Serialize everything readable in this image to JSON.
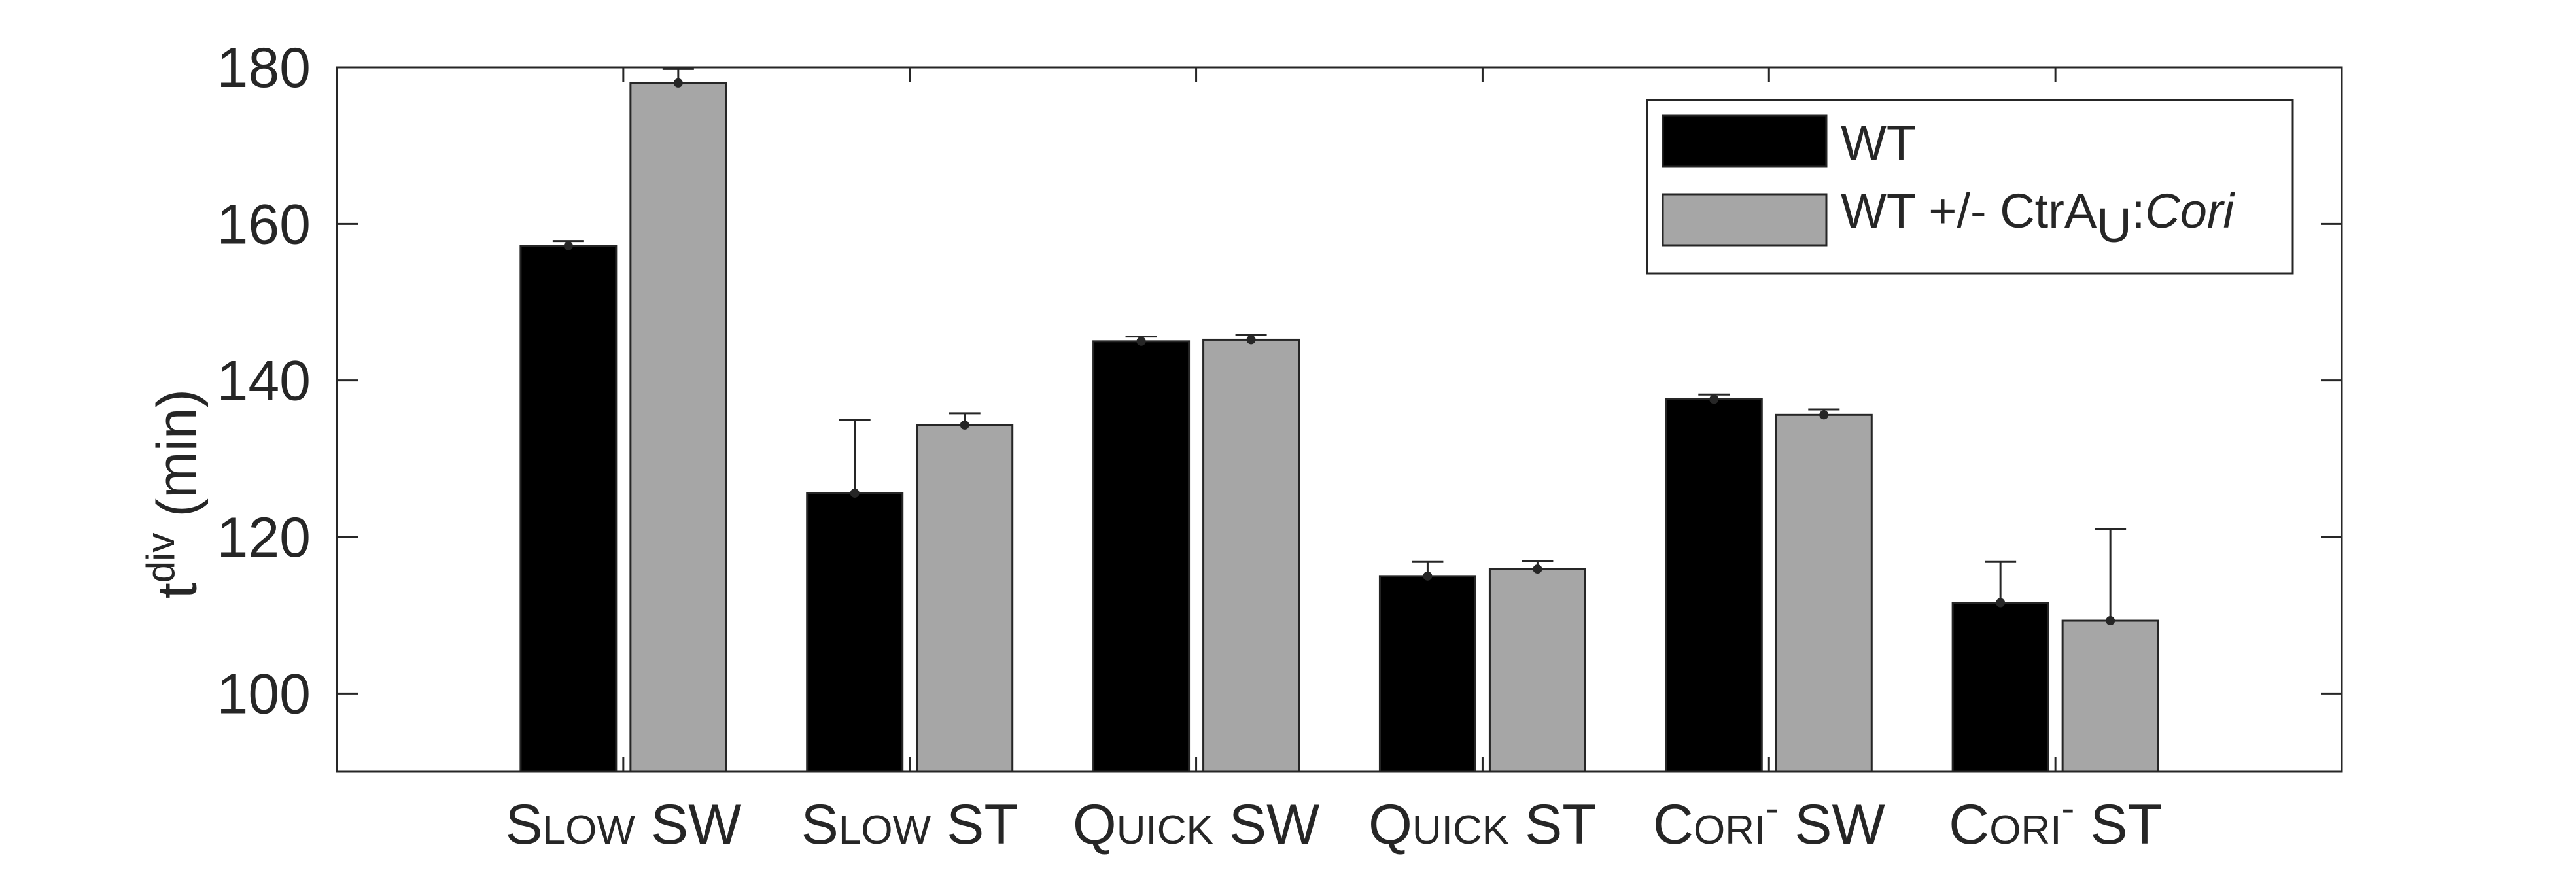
{
  "chart_data": {
    "type": "bar",
    "categories": [
      "SLOW SW",
      "SLOW ST",
      "QUICK SW",
      "QUICK ST",
      "CORI- SW",
      "CORI- ST"
    ],
    "series": [
      {
        "name": "WT",
        "color": "#000000",
        "values": [
          157.2,
          125.6,
          145.0,
          115.0,
          137.6,
          111.6
        ],
        "error_upper": [
          0.6,
          9.4,
          0.6,
          1.8,
          0.6,
          5.2
        ]
      },
      {
        "name": "WT +/- CtrA_U:Cori",
        "color": "#a6a6a6",
        "values": [
          178.0,
          134.3,
          145.2,
          115.9,
          135.6,
          109.3
        ],
        "error_upper": [
          1.8,
          1.5,
          0.6,
          1.0,
          0.7,
          11.7
        ]
      }
    ],
    "ylabel": "t^div (min)",
    "ylim": [
      90,
      180
    ],
    "yticks": [
      100,
      120,
      140,
      160,
      180
    ],
    "grid": false,
    "legend_position": "top-right",
    "labels": {
      "ylabel_base": "t",
      "ylabel_sup": "div",
      "ylabel_rest": " (min)",
      "legend_wt": "WT",
      "legend_ctra_main": "WT +/- CtrA",
      "legend_ctra_sub": "U",
      "legend_ctra_colon": ":",
      "legend_ctra_italic": "Cori",
      "categories": [
        {
          "big": "S",
          "small": "LOW",
          "sup": "",
          "rest": " SW"
        },
        {
          "big": "S",
          "small": "LOW",
          "sup": "",
          "rest": " ST"
        },
        {
          "big": "Q",
          "small": "UICK",
          "sup": "",
          "rest": " SW"
        },
        {
          "big": "Q",
          "small": "UICK",
          "sup": "",
          "rest": " ST"
        },
        {
          "big": "C",
          "small": "ORI",
          "sup": "-",
          "rest": " SW"
        },
        {
          "big": "C",
          "small": "ORI",
          "sup": "-",
          "rest": " ST"
        }
      ]
    }
  }
}
